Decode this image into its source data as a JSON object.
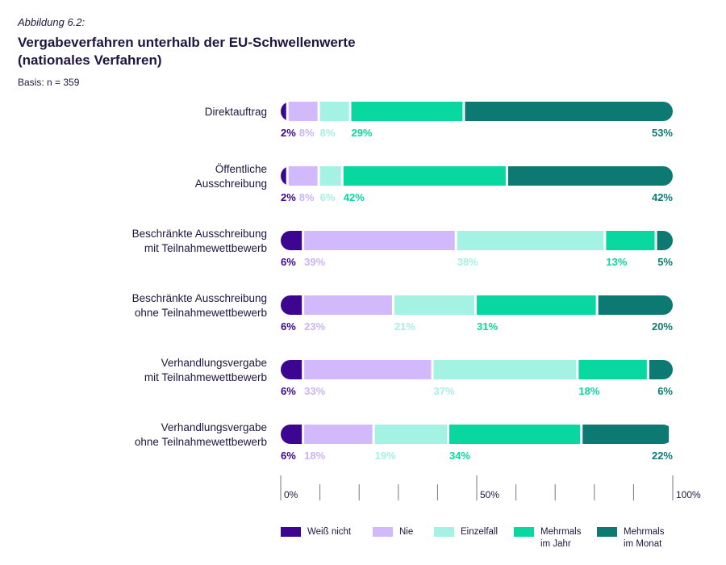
{
  "figure_label": "Abbildung 6.2:",
  "title_line1": "Vergabeverfahren unterhalb der EU-Schwellenwerte",
  "title_line2": "(nationales Verfahren)",
  "basis": "Basis: n = 359",
  "chart_data": {
    "type": "bar",
    "orientation": "horizontal-stacked",
    "title": "Vergabeverfahren unterhalb der EU-Schwellenwerte (nationales Verfahren)",
    "categories": [
      [
        "Direktauftrag"
      ],
      [
        "Öffentliche",
        "Ausschreibung"
      ],
      [
        "Beschränkte Ausschreibung",
        "mit Teilnahmewettbewerb"
      ],
      [
        "Beschränkte Ausschreibung",
        "ohne Teilnahmewettbewerb"
      ],
      [
        "Verhandlungsvergabe",
        "mit Teilnahmewettbewerb"
      ],
      [
        "Verhandlungsvergabe",
        "ohne Teilnahmewettbewerb"
      ]
    ],
    "series": [
      {
        "name": [
          "Weiß nicht"
        ],
        "color": "#3d0690",
        "label_color": "#3d0690",
        "values": [
          2,
          2,
          6,
          6,
          6,
          6
        ]
      },
      {
        "name": [
          "Nie"
        ],
        "color": "#d1b9fb",
        "label_color": "#cbb5f5",
        "values": [
          8,
          8,
          39,
          23,
          33,
          18
        ]
      },
      {
        "name": [
          "Einzelfall"
        ],
        "color": "#a3f2e3",
        "label_color": "#a3f2e3",
        "values": [
          8,
          6,
          38,
          21,
          37,
          19
        ]
      },
      {
        "name": [
          "Mehrmals",
          "im Jahr"
        ],
        "color": "#08d8a0",
        "label_color": "#08d8a0",
        "values": [
          29,
          42,
          13,
          31,
          18,
          34
        ]
      },
      {
        "name": [
          "Mehrmals",
          "im Monat"
        ],
        "color": "#0c7a73",
        "label_color": "#0c7a73",
        "values": [
          53,
          42,
          5,
          20,
          6,
          22
        ]
      }
    ],
    "value_suffix": "%",
    "xlim": [
      0,
      100
    ],
    "xticks": [
      0,
      10,
      20,
      30,
      40,
      50,
      60,
      70,
      80,
      90,
      100
    ],
    "xtick_labels": {
      "0": "0%",
      "50": "50%",
      "100": "100%"
    },
    "legend_position": "bottom"
  }
}
